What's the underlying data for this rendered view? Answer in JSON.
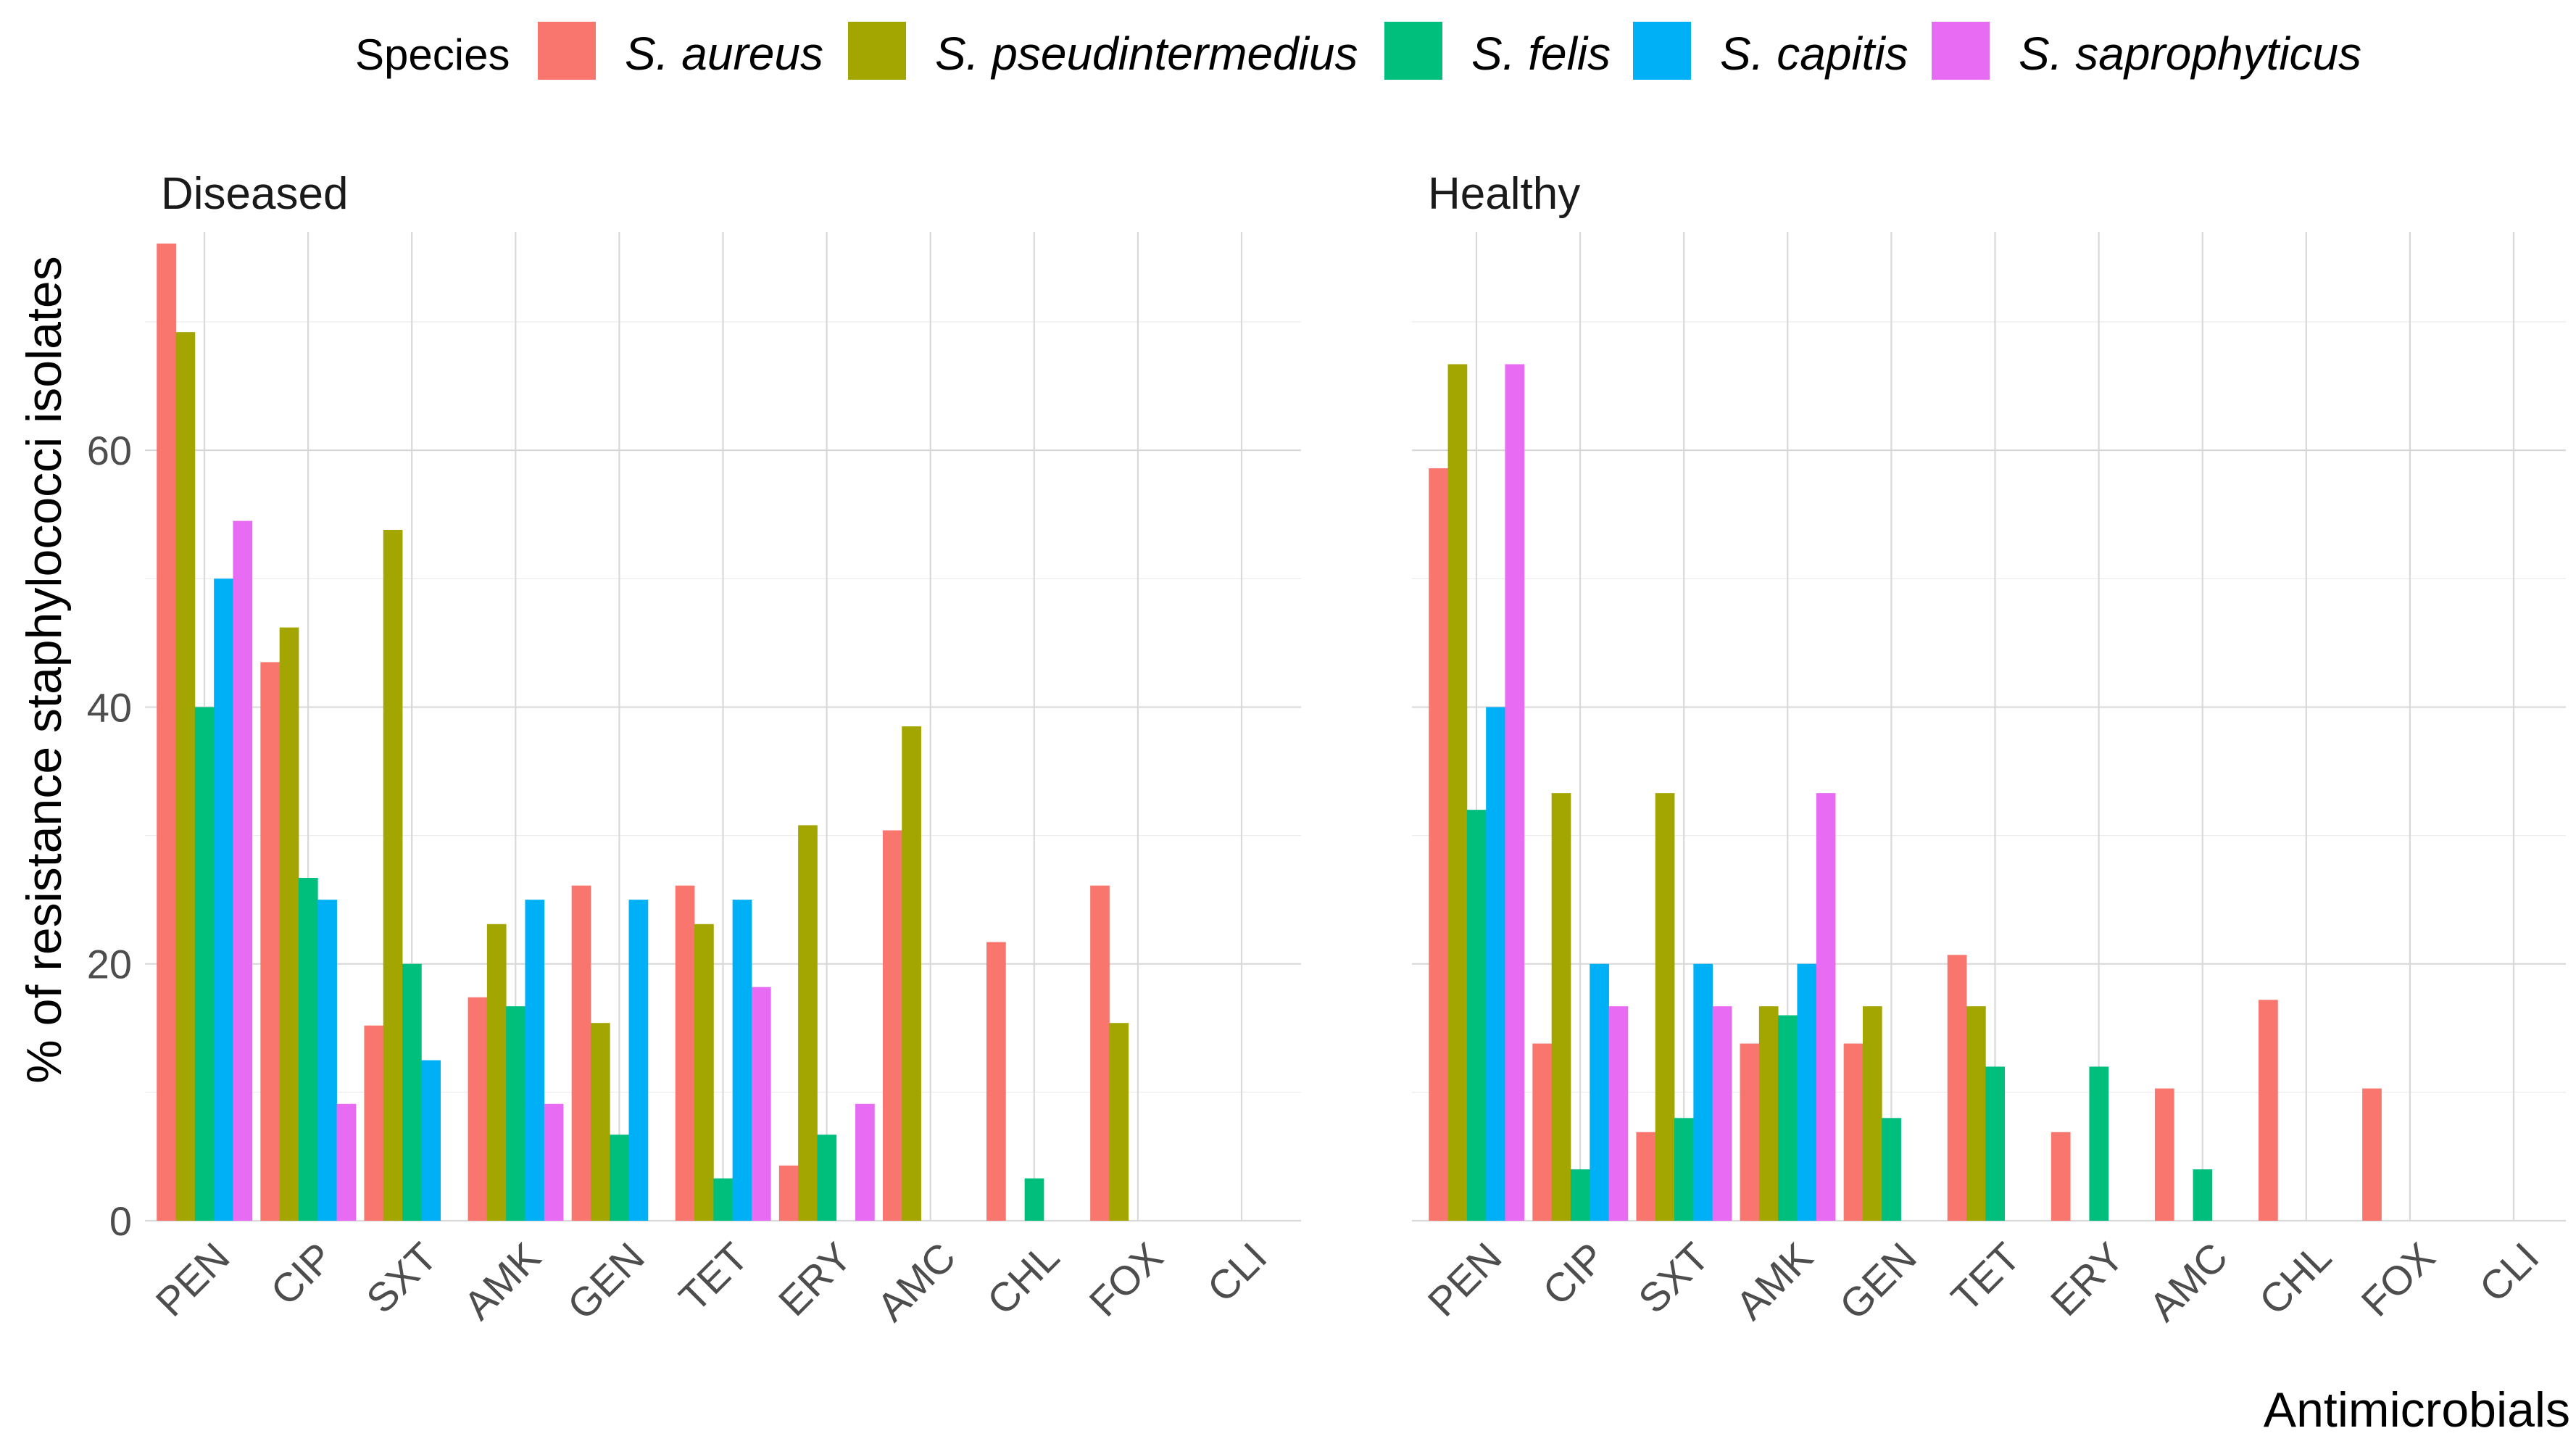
{
  "chart_data": {
    "type": "bar",
    "legend": {
      "title": "Species",
      "position": "top",
      "entries": [
        {
          "name": "S. aureus",
          "color": "#F8766D"
        },
        {
          "name": "S. pseudintermedius",
          "color": "#A3A500"
        },
        {
          "name": "S. felis",
          "color": "#00BF7D"
        },
        {
          "name": "S. capitis",
          "color": "#00B0F6"
        },
        {
          "name": "S. saprophyticus",
          "color": "#E76BF3"
        }
      ]
    },
    "ylabel": "% of resistance staphylococci isolates",
    "xlabel": "Antimicrobials",
    "ylim": [
      0,
      77
    ],
    "yticks": [
      0,
      20,
      40,
      60
    ],
    "categories": [
      "PEN",
      "CIP",
      "SXT",
      "AMK",
      "GEN",
      "TET",
      "ERY",
      "AMC",
      "CHL",
      "FOX",
      "CLI"
    ],
    "panels": [
      {
        "title": "Diseased",
        "series": [
          {
            "name": "S. aureus",
            "values": [
              76.1,
              43.5,
              15.2,
              17.4,
              26.1,
              26.1,
              4.3,
              30.4,
              21.7,
              26.1,
              0
            ]
          },
          {
            "name": "S. pseudintermedius",
            "values": [
              69.2,
              46.2,
              53.8,
              23.1,
              15.4,
              23.1,
              30.8,
              38.5,
              0,
              15.4,
              0
            ]
          },
          {
            "name": "S. felis",
            "values": [
              40,
              26.7,
              20,
              16.7,
              6.7,
              3.3,
              6.7,
              0,
              3.3,
              0,
              0
            ]
          },
          {
            "name": "S. capitis",
            "values": [
              50,
              25,
              12.5,
              25,
              25,
              25,
              0,
              0,
              0,
              0,
              0
            ]
          },
          {
            "name": "S. saprophyticus",
            "values": [
              54.5,
              9.1,
              0,
              9.1,
              0,
              18.2,
              9.1,
              0,
              0,
              0,
              0
            ]
          }
        ]
      },
      {
        "title": "Healthy",
        "series": [
          {
            "name": "S. aureus",
            "values": [
              58.6,
              13.8,
              6.9,
              13.8,
              13.8,
              20.7,
              6.9,
              10.3,
              17.2,
              10.3,
              0
            ]
          },
          {
            "name": "S. pseudintermedius",
            "values": [
              66.7,
              33.3,
              33.3,
              16.7,
              16.7,
              16.7,
              0,
              0,
              0,
              0,
              0
            ]
          },
          {
            "name": "S. felis",
            "values": [
              32,
              4,
              8,
              16,
              8,
              12,
              12,
              4,
              0,
              0,
              0
            ]
          },
          {
            "name": "S. capitis",
            "values": [
              40,
              20,
              20,
              20,
              0,
              0,
              0,
              0,
              0,
              0,
              0
            ]
          },
          {
            "name": "S. saprophyticus",
            "values": [
              66.7,
              16.7,
              16.7,
              33.3,
              0,
              0,
              0,
              0,
              0,
              0,
              0
            ]
          }
        ]
      }
    ]
  }
}
